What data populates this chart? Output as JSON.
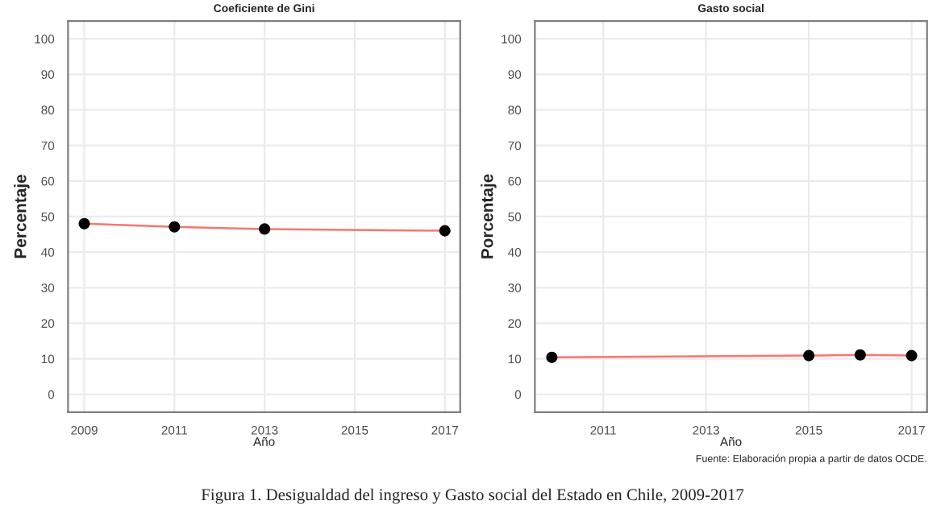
{
  "chart_data": [
    {
      "type": "line",
      "title": "Coeficiente de Gini",
      "xlabel": "Año",
      "ylabel": "Percentaje",
      "xlim": [
        2008.64,
        2017.34
      ],
      "xticks": [
        2009,
        2011,
        2013,
        2015,
        2017
      ],
      "ylim": [
        -5,
        105
      ],
      "yticks": [
        0,
        10,
        20,
        30,
        40,
        50,
        60,
        70,
        80,
        90,
        100
      ],
      "grid": true,
      "legend": false,
      "series": [
        {
          "type": "line",
          "color": "#f8766d",
          "x": [
            2009,
            2011,
            2013,
            2017
          ],
          "values": [
            48.0,
            47.1,
            46.5,
            46.0
          ]
        },
        {
          "type": "scatter",
          "color": "#000000",
          "marker": "circle",
          "x": [
            2009,
            2011,
            2013,
            2017
          ],
          "values": [
            48.0,
            47.1,
            46.5,
            46.0
          ]
        }
      ]
    },
    {
      "type": "line",
      "title": "Gasto social",
      "xlabel": "Año",
      "ylabel": "Porcentaje",
      "xlim": [
        2009.67,
        2017.3
      ],
      "xticks": [
        2011,
        2013,
        2015,
        2017
      ],
      "ylim": [
        -5,
        105
      ],
      "yticks": [
        0,
        10,
        20,
        30,
        40,
        50,
        60,
        70,
        80,
        90,
        100
      ],
      "grid": true,
      "legend": false,
      "annotations": [
        "Fuente: Elaboración propia a partir de datos OCDE.",
        "Figura 1. Desigualdad del ingreso y Gasto social del Estado en Chile, 2009-2017"
      ],
      "series": [
        {
          "type": "line",
          "color": "#f8766d",
          "x": [
            2010,
            2015,
            2016,
            2017
          ],
          "values": [
            10.4,
            10.9,
            11.1,
            10.9
          ]
        },
        {
          "type": "scatter",
          "color": "#000000",
          "marker": "circle",
          "x": [
            2010,
            2015,
            2016,
            2017
          ],
          "values": [
            10.4,
            10.9,
            11.1,
            10.9
          ]
        }
      ]
    }
  ]
}
